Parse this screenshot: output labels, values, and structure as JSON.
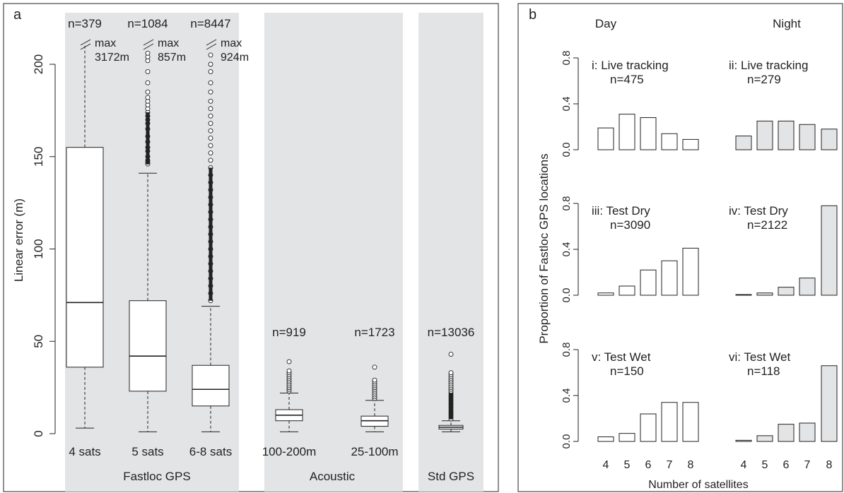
{
  "chart_data": [
    {
      "type": "box",
      "panel_label": "a",
      "ylabel": "Linear error (m)",
      "ylim": [
        0,
        210
      ],
      "yticks": [
        0,
        50,
        100,
        150,
        200
      ],
      "groups": [
        {
          "name": "Fastloc GPS",
          "boxes": [
            {
              "label": "4 sats",
              "n_label": "n=379",
              "max_label": "max 3172m",
              "min": 3,
              "q1": 36,
              "median": 71,
              "q3": 155,
              "whisker_high": 210,
              "outliers": []
            },
            {
              "label": "5 sats",
              "n_label": "n=1084",
              "max_label": "max 857m",
              "min": 1,
              "q1": 23,
              "median": 42,
              "q3": 72,
              "whisker_high": 141,
              "outliers": [
                146,
                147,
                148,
                150,
                153,
                155,
                158,
                161,
                165,
                168,
                170,
                172,
                174,
                176,
                178,
                180,
                182,
                185,
                190,
                196,
                202,
                204,
                206
              ]
            },
            {
              "label": "6-8 sats",
              "n_label": "n=8447",
              "max_label": "max 924m",
              "min": 1,
              "q1": 15,
              "median": 24,
              "q3": 37,
              "whisker_high": 69,
              "outliers": [
                72,
                76,
                80,
                84,
                88,
                92,
                96,
                100,
                104,
                108,
                112,
                116,
                120,
                124,
                128,
                132,
                136,
                140,
                144,
                148,
                152,
                156,
                160,
                164,
                168,
                172,
                176,
                180,
                185,
                190,
                196,
                200,
                205
              ]
            }
          ]
        },
        {
          "name": "Acoustic",
          "boxes": [
            {
              "label": "100-200m",
              "n_label": "n=919",
              "max_label": "",
              "min": 1,
              "q1": 7,
              "median": 10,
              "q3": 13,
              "whisker_high": 22,
              "outliers": [
                23,
                24,
                25,
                26,
                27,
                28,
                29,
                30,
                31,
                32,
                33,
                34,
                39
              ]
            },
            {
              "label": "25-100m",
              "n_label": "n=1723",
              "max_label": "",
              "min": 1,
              "q1": 4,
              "median": 7,
              "q3": 9.5,
              "whisker_high": 18,
              "outliers": [
                19,
                20,
                21,
                22,
                23,
                24,
                25,
                26,
                27,
                28,
                29,
                36
              ]
            }
          ]
        },
        {
          "name": "Std GPS",
          "boxes": [
            {
              "label": "",
              "n_label": "n=13036",
              "max_label": "",
              "min": 1,
              "q1": 2.5,
              "median": 3.5,
              "q3": 4.5,
              "whisker_high": 7,
              "outliers": [
                8,
                9,
                10,
                11,
                12,
                13,
                14,
                15,
                16,
                17,
                18,
                19,
                20,
                21,
                22,
                23,
                24,
                25,
                26,
                27,
                28,
                29,
                30,
                31,
                32,
                33,
                43
              ]
            }
          ]
        }
      ]
    },
    {
      "type": "bar",
      "panel_label": "b",
      "ylabel": "Proportion of Fastloc GPS locations",
      "xlabel": "Number of satellites",
      "column_titles": [
        "Day",
        "Night"
      ],
      "categories": [
        "4",
        "5",
        "6",
        "7",
        "8"
      ],
      "ylim": [
        0,
        0.9
      ],
      "yticks": [
        "0.0",
        "0.4",
        "0.8"
      ],
      "panels": [
        {
          "title": "i: Live tracking",
          "n_label": "n=475",
          "shaded": false,
          "values": [
            0.19,
            0.31,
            0.28,
            0.14,
            0.09
          ]
        },
        {
          "title": "ii: Live tracking",
          "n_label": "n=279",
          "shaded": true,
          "values": [
            0.12,
            0.25,
            0.25,
            0.22,
            0.18
          ]
        },
        {
          "title": "iii: Test Dry",
          "n_label": "n=3090",
          "shaded": false,
          "values": [
            0.02,
            0.08,
            0.22,
            0.3,
            0.41
          ]
        },
        {
          "title": "iv: Test Dry",
          "n_label": "n=2122",
          "shaded": true,
          "values": [
            0.003,
            0.02,
            0.07,
            0.15,
            0.78
          ]
        },
        {
          "title": "v: Test Wet",
          "n_label": "n=150",
          "shaded": false,
          "values": [
            0.04,
            0.07,
            0.24,
            0.34,
            0.34
          ]
        },
        {
          "title": "vi: Test Wet",
          "n_label": "n=118",
          "shaded": true,
          "values": [
            0.01,
            0.05,
            0.15,
            0.16,
            0.66
          ]
        }
      ]
    }
  ],
  "colors": {
    "shade": "#e3e4e6",
    "bar_fill_night": "#e3e4e6",
    "bar_fill_day": "#ffffff",
    "stroke": "#222222"
  }
}
